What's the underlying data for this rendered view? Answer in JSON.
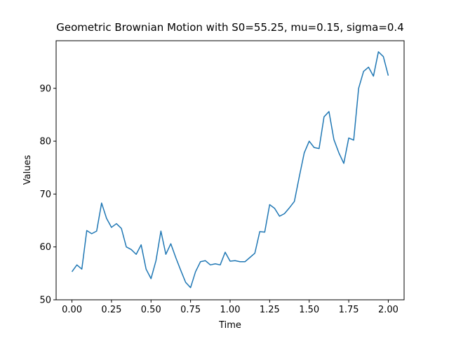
{
  "chart_data": {
    "type": "line",
    "title": "Geometric Brownian Motion with S0=55.25, mu=0.15, sigma=0.4",
    "x_label": "Time",
    "y_label": "Values",
    "x": [
      0,
      0.03125,
      0.0625,
      0.09375,
      0.125,
      0.15625,
      0.1875,
      0.21875,
      0.25,
      0.28125,
      0.3125,
      0.34375,
      0.375,
      0.40625,
      0.4375,
      0.46875,
      0.5,
      0.53125,
      0.5625,
      0.59375,
      0.625,
      0.65625,
      0.6875,
      0.71875,
      0.75,
      0.78125,
      0.8125,
      0.84375,
      0.875,
      0.90625,
      0.9375,
      0.96875,
      1,
      1.03125,
      1.0625,
      1.09375,
      1.125,
      1.15625,
      1.1875,
      1.21875,
      1.25,
      1.28125,
      1.3125,
      1.34375,
      1.375,
      1.40625,
      1.4375,
      1.46875,
      1.5,
      1.53125,
      1.5625,
      1.59375,
      1.625,
      1.65625,
      1.6875,
      1.71875,
      1.75,
      1.78125,
      1.8125,
      1.84375,
      1.875,
      1.90625,
      1.9375,
      1.96875,
      2
    ],
    "values": [
      55.3,
      56.6,
      55.8,
      63.1,
      62.5,
      63.0,
      68.3,
      65.4,
      63.7,
      64.4,
      63.5,
      60.0,
      59.5,
      58.6,
      60.4,
      55.8,
      54.0,
      57.4,
      63.0,
      58.6,
      60.6,
      58.0,
      55.6,
      53.3,
      52.3,
      55.3,
      57.2,
      57.4,
      56.6,
      56.8,
      56.6,
      59.0,
      57.3,
      57.4,
      57.2,
      57.2,
      58.0,
      58.8,
      62.9,
      62.8,
      68.0,
      67.3,
      65.8,
      66.3,
      67.4,
      68.6,
      73.3,
      77.8,
      80.0,
      78.8,
      78.6,
      84.6,
      85.6,
      80.3,
      77.8,
      75.8,
      80.6,
      80.2,
      90.0,
      93.2,
      94.0,
      92.3,
      96.9,
      96.0,
      92.4
    ],
    "color": "#1f77b4",
    "xlim": [
      -0.1,
      2.1
    ],
    "xticks": [
      {
        "value": 0,
        "label": "0.00"
      },
      {
        "value": 0.25,
        "label": "0.25"
      },
      {
        "value": 0.5,
        "label": "0.50"
      },
      {
        "value": 0.75,
        "label": "0.75"
      },
      {
        "value": 1,
        "label": "1.00"
      },
      {
        "value": 1.25,
        "label": "1.25"
      },
      {
        "value": 1.5,
        "label": "1.50"
      },
      {
        "value": 1.75,
        "label": "1.75"
      },
      {
        "value": 2,
        "label": "2.00"
      }
    ],
    "ylim": [
      50,
      99
    ],
    "yticks": [
      50,
      60,
      70,
      80,
      90
    ]
  }
}
